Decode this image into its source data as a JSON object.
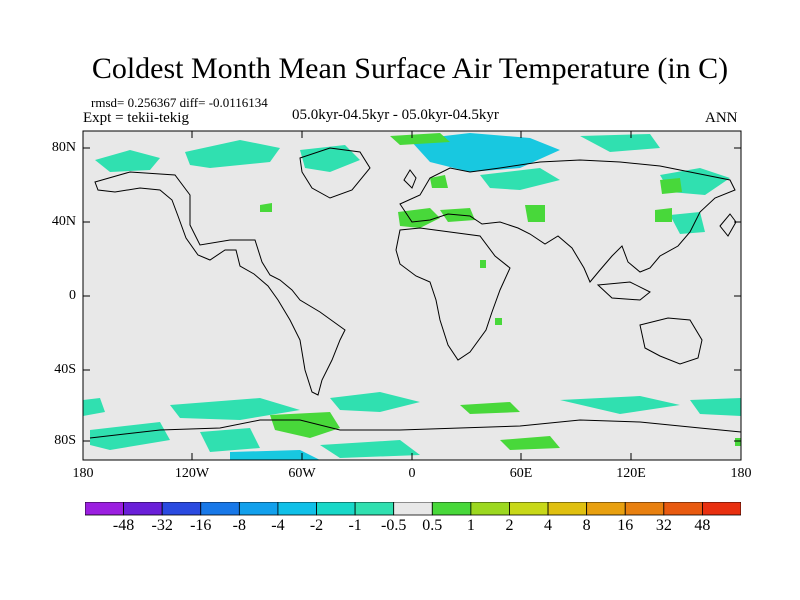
{
  "title": "Coldest Month Mean Surface Air Temperature (in C)",
  "stats": "rmsd= 0.256367  diff= -0.0116134",
  "expt": "Expt = tekii-tekig",
  "period": "05.0kyr-04.5kyr - 05.0kyr-04.5kyr",
  "season": "ANN",
  "axes": {
    "y_ticks": [
      "80N",
      "40N",
      "0",
      "40S",
      "80S"
    ],
    "x_ticks": [
      "180",
      "120W",
      "60W",
      "0",
      "60E",
      "120E",
      "180"
    ]
  },
  "colorbar": {
    "colors": [
      "#9b1fe0",
      "#6a1fd8",
      "#2a4ae0",
      "#1878e8",
      "#12a0ec",
      "#10c0e8",
      "#18d8c8",
      "#30e0b0",
      "#e8e8e8",
      "#48d83a",
      "#9cd820",
      "#c8d818",
      "#e0c010",
      "#e8a010",
      "#e88010",
      "#e85a10",
      "#e83010"
    ],
    "labels": [
      "-48",
      "-32",
      "-16",
      "-8",
      "-4",
      "-2",
      "-1",
      "-0.5",
      "0.5",
      "1",
      "2",
      "4",
      "8",
      "16",
      "32",
      "48"
    ]
  },
  "map_colors": {
    "background": "#e8e8e8",
    "cool": "#30e0b0",
    "cooler": "#18c8e0",
    "warm": "#48d83a",
    "coast": "#000000"
  }
}
